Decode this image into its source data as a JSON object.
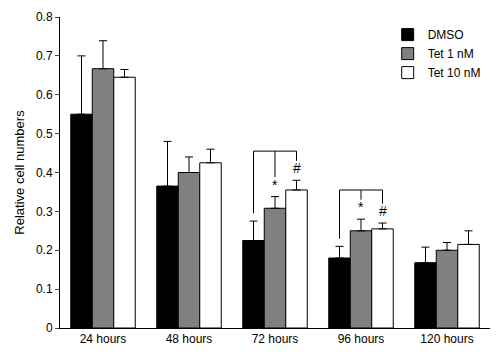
{
  "chart_data": {
    "type": "bar",
    "y_label": "Relative cell numbers",
    "categories": [
      "24 hours",
      "48 hours",
      "72 hours",
      "96 hours",
      "120 hours"
    ],
    "series": [
      {
        "name": "DMSO",
        "color": "#000000",
        "values": [
          0.55,
          0.365,
          0.225,
          0.18,
          0.168
        ],
        "errors": [
          0.15,
          0.115,
          0.05,
          0.03,
          0.04
        ]
      },
      {
        "name": "Tet 1 nM",
        "color": "#808080",
        "values": [
          0.667,
          0.4,
          0.308,
          0.25,
          0.2
        ],
        "errors": [
          0.072,
          0.04,
          0.03,
          0.03,
          0.02
        ]
      },
      {
        "name": "Tet 10 nM",
        "color": "#ffffff",
        "values": [
          0.645,
          0.425,
          0.355,
          0.255,
          0.215
        ],
        "errors": [
          0.02,
          0.035,
          0.025,
          0.015,
          0.035
        ]
      }
    ],
    "annotations": [
      {
        "text": "*",
        "category": "72 hours",
        "series": "Tet 1 nM",
        "versus": "DMSO"
      },
      {
        "text": "#",
        "category": "72 hours",
        "series": "Tet 10 nM",
        "versus": "DMSO"
      },
      {
        "text": "*",
        "category": "96 hours",
        "series": "Tet 1 nM",
        "versus": "DMSO"
      },
      {
        "text": "#",
        "category": "96 hours",
        "series": "Tet 10 nM",
        "versus": "DMSO"
      }
    ],
    "ylim": [
      0,
      0.8
    ],
    "yticks": [
      0,
      0.1,
      0.2,
      0.3,
      0.4,
      0.5,
      0.6,
      0.7,
      0.8
    ],
    "grid": false,
    "legend": "top right"
  }
}
